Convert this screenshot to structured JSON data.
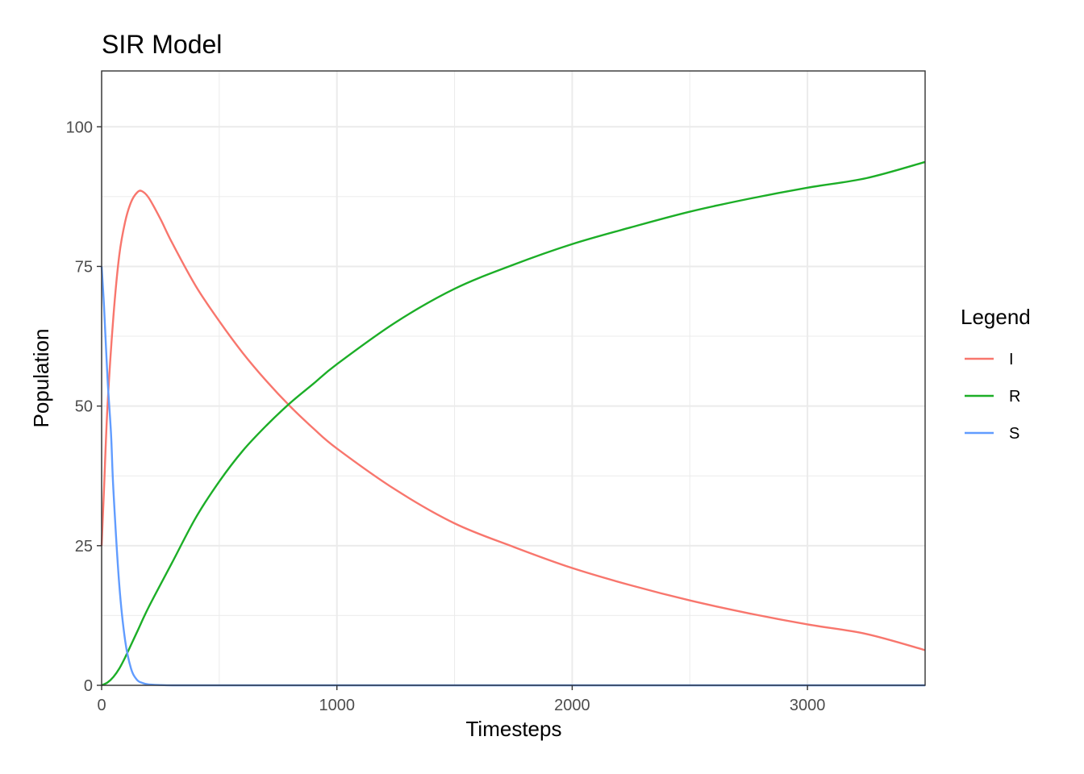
{
  "chart_data": {
    "type": "line",
    "title": "SIR Model",
    "xlabel": "Timesteps",
    "ylabel": "Population",
    "xlim": [
      0,
      3500
    ],
    "ylim": [
      0,
      110
    ],
    "x_ticks": [
      0,
      1000,
      2000,
      3000
    ],
    "y_ticks": [
      0,
      25,
      50,
      75,
      100
    ],
    "grid": true,
    "legend": {
      "title": "Legend",
      "position": "right"
    },
    "series": [
      {
        "name": "I",
        "color": "#F8766D",
        "x": [
          0,
          10,
          25,
          50,
          75,
          100,
          125,
          150,
          170,
          200,
          250,
          300,
          400,
          500,
          600,
          700,
          800,
          900,
          1000,
          1250,
          1500,
          1750,
          2000,
          2250,
          2500,
          2750,
          3000,
          3250,
          3500
        ],
        "y": [
          25,
          35,
          50,
          66,
          77,
          83,
          86.5,
          88.2,
          88.5,
          87.3,
          83.5,
          79.2,
          71.5,
          65.2,
          59.5,
          54.5,
          50,
          46,
          42.4,
          35,
          29,
          24.8,
          21,
          17.9,
          15.2,
          12.9,
          10.9,
          9.2,
          6.3
        ]
      },
      {
        "name": "R",
        "color": "#1CAE27",
        "x": [
          0,
          25,
          50,
          75,
          100,
          150,
          200,
          300,
          400,
          500,
          600,
          700,
          800,
          900,
          1000,
          1250,
          1500,
          1750,
          2000,
          2250,
          2500,
          2750,
          3000,
          3250,
          3500
        ],
        "y": [
          0,
          0.5,
          1.5,
          3,
          5,
          9.5,
          14,
          22,
          30,
          36.5,
          42,
          46.5,
          50.5,
          54,
          57.5,
          65,
          71,
          75.3,
          79,
          82,
          84.8,
          87.1,
          89.1,
          90.8,
          93.7
        ]
      },
      {
        "name": "S",
        "color": "#619CFF",
        "x": [
          0,
          10,
          25,
          40,
          50,
          75,
          100,
          125,
          150,
          175,
          200,
          250,
          300,
          400,
          600,
          1000,
          2000,
          3500
        ],
        "y": [
          75,
          68,
          55,
          45,
          35,
          18,
          8,
          3,
          1,
          0.4,
          0.15,
          0.05,
          0,
          0,
          0,
          0,
          0,
          0
        ]
      }
    ]
  }
}
